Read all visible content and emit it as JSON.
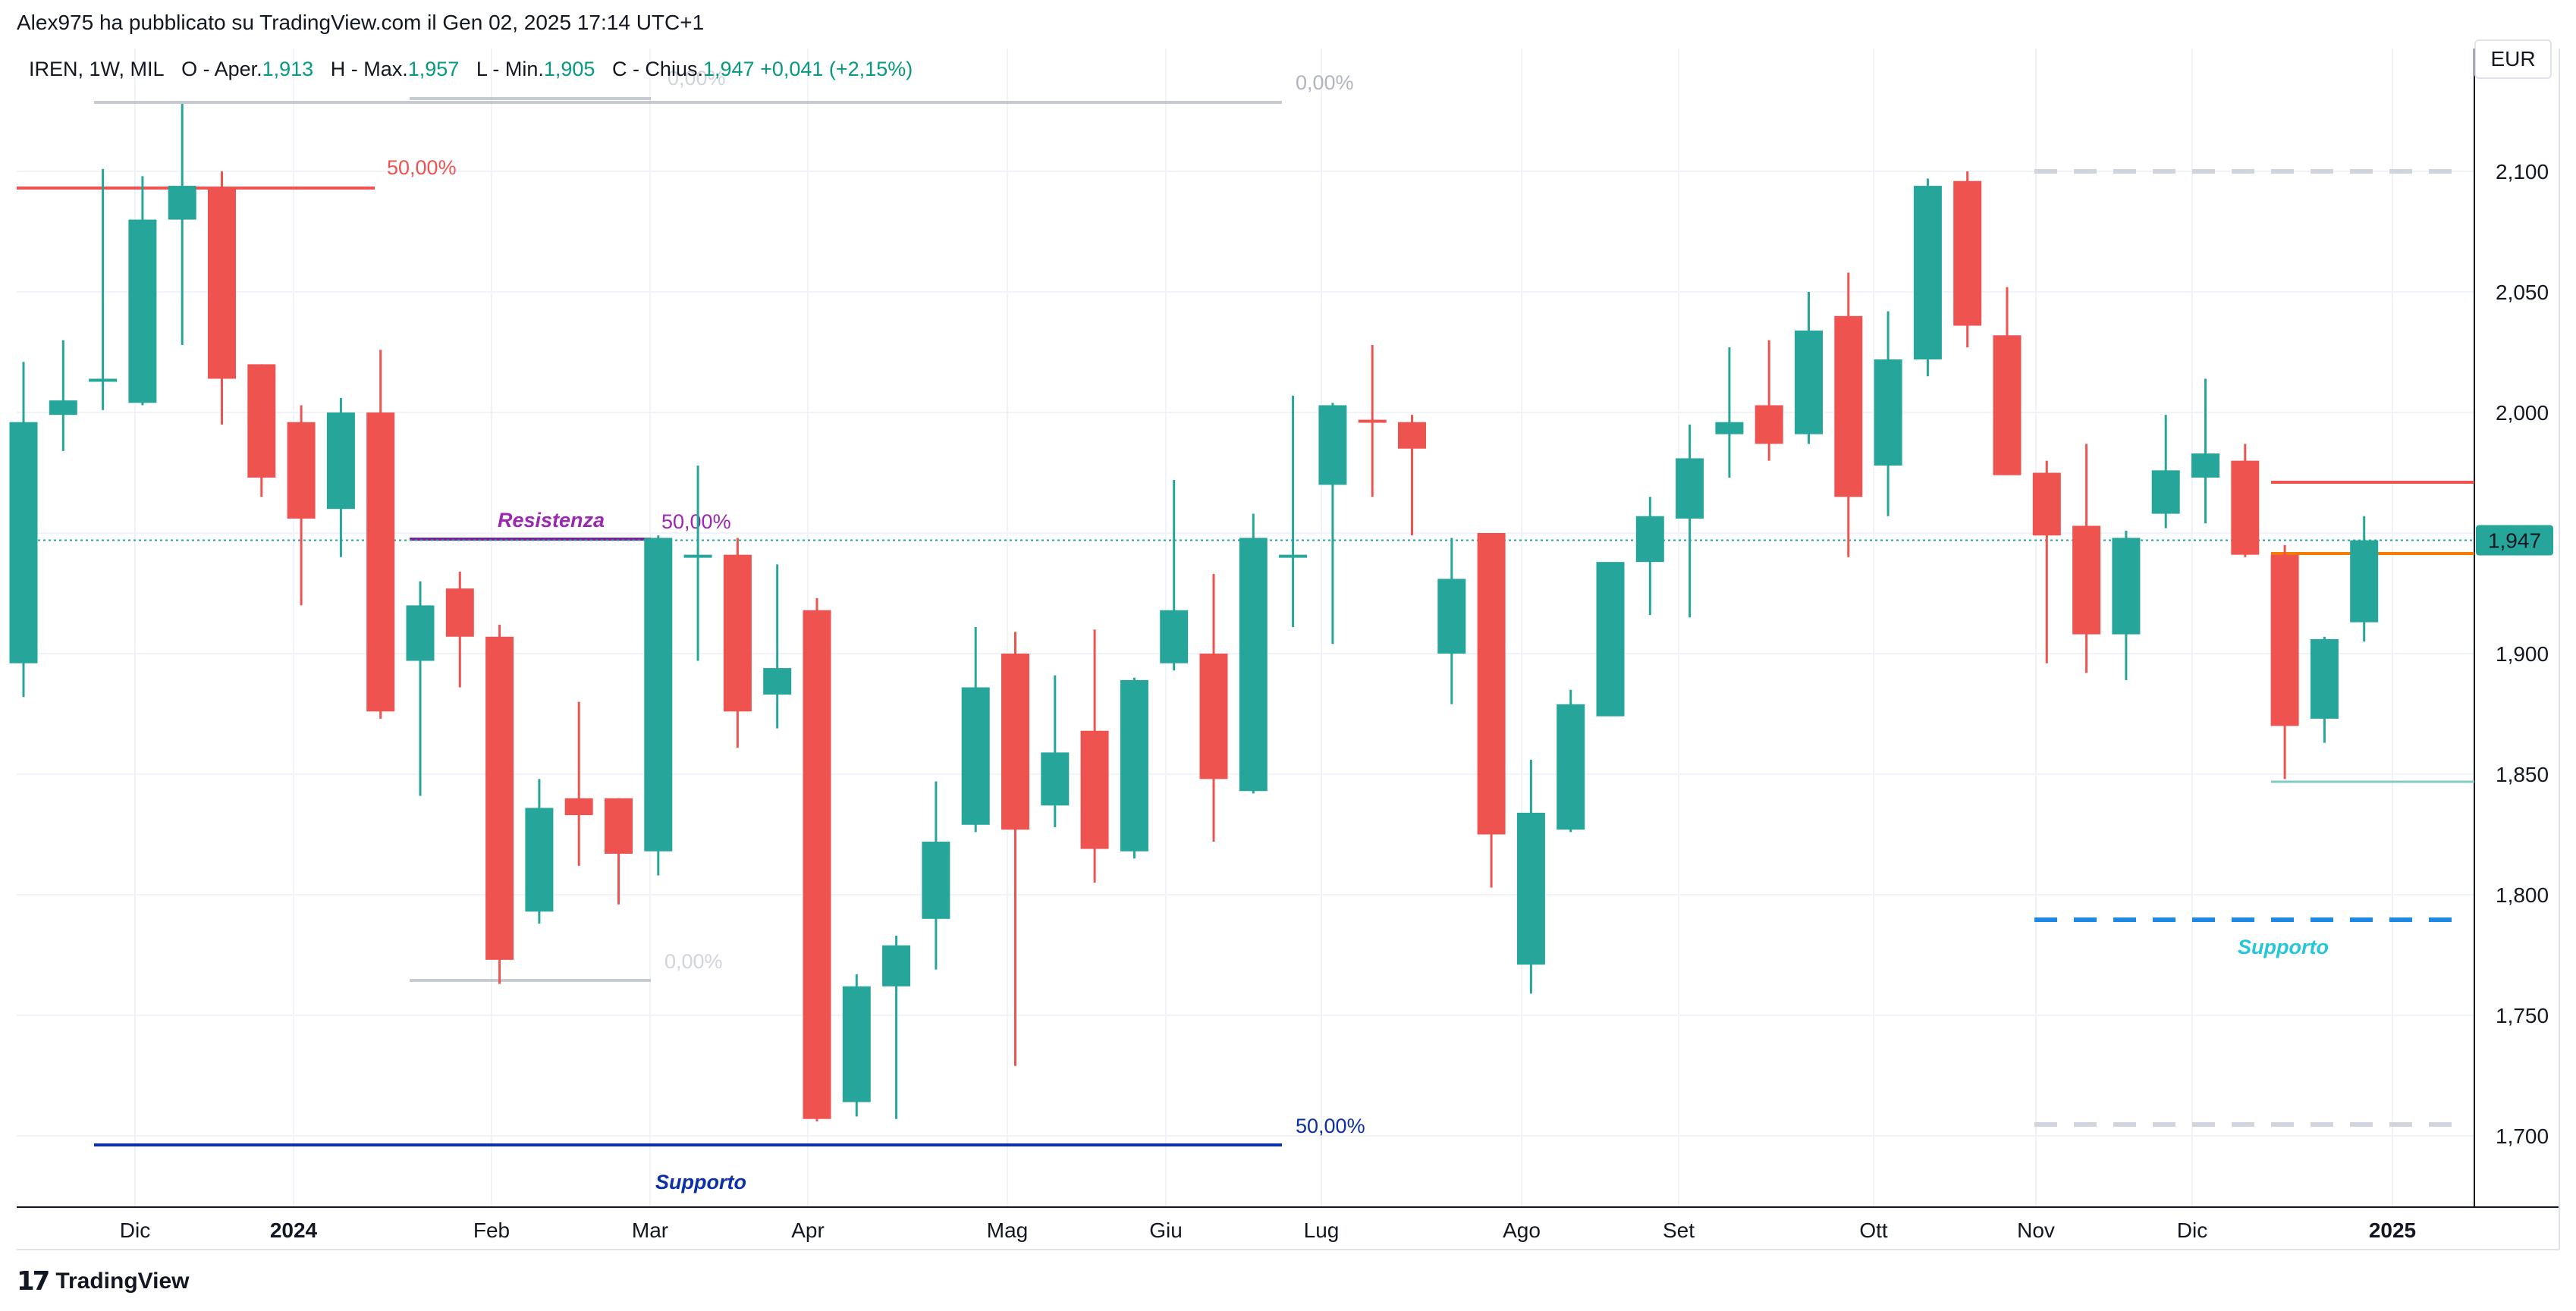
{
  "header": {
    "text": "Alex975 ha pubblicato su TradingView.com il Gen 02, 2025 17:14 UTC+1"
  },
  "legend": {
    "symbol": "IREN, 1W, MIL",
    "open_label": "O - Aper.",
    "open": "1,913",
    "high_label": "H - Max.",
    "high": "1,957",
    "low_label": "L - Min.",
    "low": "1,905",
    "close_label": "C - Chius.",
    "close": "1,947",
    "change": "+0,041 (+2,15%)"
  },
  "currency": "EUR",
  "price_badge": "1,947",
  "footer": {
    "brand": "TradingView"
  },
  "colors": {
    "up": "#26a69a",
    "down": "#ef5350",
    "grid": "#f0f3fa",
    "badge": "#26a69a"
  },
  "chart_data": {
    "type": "candlestick",
    "ylim": [
      1.625,
      2.135
    ],
    "y_ticks": [
      "2,100",
      "2,050",
      "2,000",
      "1,950",
      "1,900",
      "1,850",
      "1,800",
      "1,750",
      "1,700"
    ],
    "x_ticks": [
      "Dic",
      "2024",
      "Feb",
      "Mar",
      "Apr",
      "Mag",
      "Giu",
      "Lug",
      "Ago",
      "Set",
      "Ott",
      "Nov",
      "Dic",
      "2025"
    ],
    "candles": [
      {
        "o": 1.896,
        "h": 2.021,
        "l": 1.882,
        "c": 1.996
      },
      {
        "o": 1.999,
        "h": 2.03,
        "l": 1.984,
        "c": 2.005
      },
      {
        "o": 2.014,
        "h": 2.101,
        "l": 2.001,
        "c": 2.014
      },
      {
        "o": 2.004,
        "h": 2.098,
        "l": 2.003,
        "c": 2.08
      },
      {
        "o": 2.08,
        "h": 2.128,
        "l": 2.028,
        "c": 2.094
      },
      {
        "o": 2.093,
        "h": 2.1,
        "l": 1.995,
        "c": 2.014
      },
      {
        "o": 2.02,
        "h": 2.02,
        "l": 1.965,
        "c": 1.973
      },
      {
        "o": 1.996,
        "h": 2.003,
        "l": 1.92,
        "c": 1.956
      },
      {
        "o": 1.96,
        "h": 2.006,
        "l": 1.94,
        "c": 2.0
      },
      {
        "o": 2.0,
        "h": 2.026,
        "l": 1.873,
        "c": 1.876
      },
      {
        "o": 1.897,
        "h": 1.93,
        "l": 1.841,
        "c": 1.92
      },
      {
        "o": 1.927,
        "h": 1.934,
        "l": 1.886,
        "c": 1.907
      },
      {
        "o": 1.907,
        "h": 1.912,
        "l": 1.763,
        "c": 1.773
      },
      {
        "o": 1.793,
        "h": 1.848,
        "l": 1.788,
        "c": 1.836
      },
      {
        "o": 1.84,
        "h": 1.88,
        "l": 1.812,
        "c": 1.833
      },
      {
        "o": 1.84,
        "h": 1.84,
        "l": 1.796,
        "c": 1.817
      },
      {
        "o": 1.818,
        "h": 1.949,
        "l": 1.808,
        "c": 1.948
      },
      {
        "o": 1.941,
        "h": 1.978,
        "l": 1.897,
        "c": 1.941
      },
      {
        "o": 1.941,
        "h": 1.948,
        "l": 1.861,
        "c": 1.876
      },
      {
        "o": 1.883,
        "h": 1.937,
        "l": 1.869,
        "c": 1.894
      },
      {
        "o": 1.918,
        "h": 1.923,
        "l": 1.706,
        "c": 1.707
      },
      {
        "o": 1.714,
        "h": 1.767,
        "l": 1.708,
        "c": 1.762
      },
      {
        "o": 1.762,
        "h": 1.783,
        "l": 1.707,
        "c": 1.779
      },
      {
        "o": 1.79,
        "h": 1.847,
        "l": 1.769,
        "c": 1.822
      },
      {
        "o": 1.829,
        "h": 1.911,
        "l": 1.826,
        "c": 1.886
      },
      {
        "o": 1.9,
        "h": 1.909,
        "l": 1.729,
        "c": 1.827
      },
      {
        "o": 1.837,
        "h": 1.891,
        "l": 1.828,
        "c": 1.859
      },
      {
        "o": 1.868,
        "h": 1.91,
        "l": 1.805,
        "c": 1.819
      },
      {
        "o": 1.818,
        "h": 1.89,
        "l": 1.815,
        "c": 1.889
      },
      {
        "o": 1.896,
        "h": 1.972,
        "l": 1.893,
        "c": 1.918
      },
      {
        "o": 1.9,
        "h": 1.933,
        "l": 1.822,
        "c": 1.848
      },
      {
        "o": 1.843,
        "h": 1.958,
        "l": 1.842,
        "c": 1.948
      },
      {
        "o": 1.941,
        "h": 2.007,
        "l": 1.911,
        "c": 1.941
      },
      {
        "o": 1.97,
        "h": 2.004,
        "l": 1.904,
        "c": 2.003
      },
      {
        "o": 1.997,
        "h": 2.028,
        "l": 1.965,
        "c": 1.996
      },
      {
        "o": 1.996,
        "h": 1.999,
        "l": 1.949,
        "c": 1.985
      },
      {
        "o": 1.9,
        "h": 1.948,
        "l": 1.879,
        "c": 1.931
      },
      {
        "o": 1.95,
        "h": 1.95,
        "l": 1.803,
        "c": 1.825
      },
      {
        "o": 1.771,
        "h": 1.856,
        "l": 1.759,
        "c": 1.834
      },
      {
        "o": 1.827,
        "h": 1.885,
        "l": 1.826,
        "c": 1.879
      },
      {
        "o": 1.874,
        "h": 1.937,
        "l": 1.874,
        "c": 1.938
      },
      {
        "o": 1.938,
        "h": 1.965,
        "l": 1.916,
        "c": 1.957
      },
      {
        "o": 1.956,
        "h": 1.995,
        "l": 1.915,
        "c": 1.981
      },
      {
        "o": 1.991,
        "h": 2.027,
        "l": 1.973,
        "c": 1.996
      },
      {
        "o": 2.003,
        "h": 2.03,
        "l": 1.98,
        "c": 1.987
      },
      {
        "o": 1.991,
        "h": 2.05,
        "l": 1.987,
        "c": 2.034
      },
      {
        "o": 2.04,
        "h": 2.058,
        "l": 1.94,
        "c": 1.965
      },
      {
        "o": 1.978,
        "h": 2.042,
        "l": 1.957,
        "c": 2.022
      },
      {
        "o": 2.022,
        "h": 2.097,
        "l": 2.015,
        "c": 2.094
      },
      {
        "o": 2.096,
        "h": 2.1,
        "l": 2.027,
        "c": 2.036
      },
      {
        "o": 2.032,
        "h": 2.052,
        "l": 1.974,
        "c": 1.974
      },
      {
        "o": 1.975,
        "h": 1.98,
        "l": 1.896,
        "c": 1.949
      },
      {
        "o": 1.953,
        "h": 1.987,
        "l": 1.892,
        "c": 1.908
      },
      {
        "o": 1.908,
        "h": 1.951,
        "l": 1.889,
        "c": 1.948
      },
      {
        "o": 1.958,
        "h": 1.999,
        "l": 1.952,
        "c": 1.976
      },
      {
        "o": 1.973,
        "h": 2.014,
        "l": 1.954,
        "c": 1.983
      },
      {
        "o": 1.98,
        "h": 1.987,
        "l": 1.94,
        "c": 1.941
      },
      {
        "o": 1.941,
        "h": 1.945,
        "l": 1.848,
        "c": 1.87
      },
      {
        "o": 1.873,
        "h": 1.907,
        "l": 1.863,
        "c": 1.906
      },
      {
        "o": 1.913,
        "h": 1.957,
        "l": 1.905,
        "c": 1.947
      }
    ],
    "annotations": {
      "resistenza": "Resistenza",
      "supporto_blue": "Supporto",
      "supporto_cyan": "Supporto",
      "fib_labels": [
        "0,00%",
        "50,00%",
        "0,00%",
        "50,00%",
        "0,00%",
        "50,00%"
      ]
    }
  }
}
